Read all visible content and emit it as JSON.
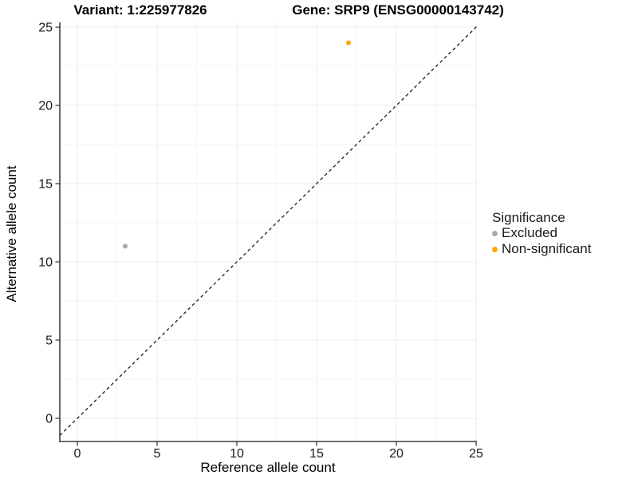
{
  "chart_data": {
    "type": "scatter",
    "title_left": "Variant: 1:225977826",
    "title_right": "Gene: SRP9 (ENSG00000143742)",
    "xlabel": "Reference allele count",
    "ylabel": "Alternative allele count",
    "x_ticks": [
      0,
      5,
      10,
      15,
      20,
      25
    ],
    "y_ticks": [
      0,
      5,
      10,
      15,
      20,
      25
    ],
    "xlim": [
      -1.1,
      25.1
    ],
    "ylim": [
      -1.5,
      25.3
    ],
    "grid": "major-and-minor",
    "identity_line": {
      "style": "dashed",
      "slope": 1,
      "intercept": 0,
      "color": "#1a1a1a"
    },
    "series": [
      {
        "name": "Excluded",
        "color": "#aaaaaa",
        "points": [
          {
            "x": 3,
            "y": 11
          }
        ]
      },
      {
        "name": "Non-significant",
        "color": "#ffa500",
        "points": [
          {
            "x": 17,
            "y": 24
          }
        ]
      }
    ],
    "legend": {
      "title": "Significance",
      "position": "right",
      "items": [
        {
          "label": "Excluded",
          "color": "#aaaaaa"
        },
        {
          "label": "Non-significant",
          "color": "#ffa500"
        }
      ]
    },
    "colors": {
      "axis": "#3f3f3f",
      "tick": "#333333",
      "grid_major": "#ececec",
      "grid_minor": "#f5f5f5",
      "background": "#ffffff"
    }
  }
}
